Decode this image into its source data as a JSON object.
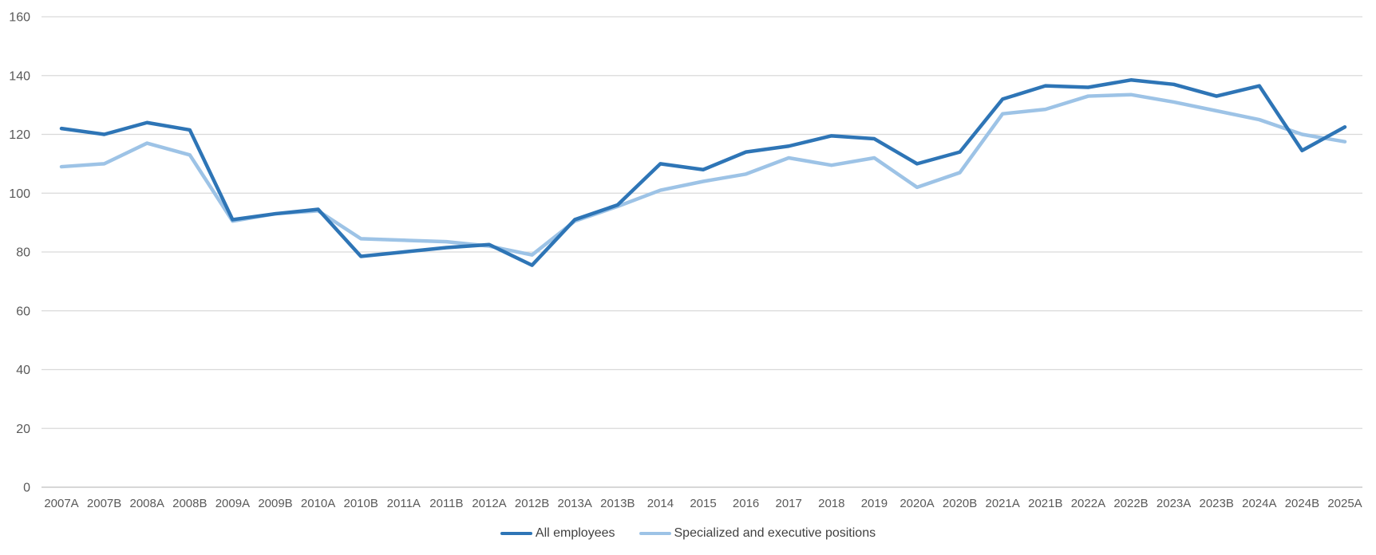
{
  "chart_data": {
    "type": "line",
    "title": "",
    "xlabel": "",
    "ylabel": "",
    "ylim": [
      0,
      160
    ],
    "yticks": [
      0,
      20,
      40,
      60,
      80,
      100,
      120,
      140,
      160
    ],
    "grid": "horizontal",
    "legend_position": "bottom-center",
    "categories": [
      "2007A",
      "2007B",
      "2008A",
      "2008B",
      "2009A",
      "2009B",
      "2010A",
      "2010B",
      "2011A",
      "2011B",
      "2012A",
      "2012B",
      "2013A",
      "2013B",
      "2014",
      "2015",
      "2016",
      "2017",
      "2018",
      "2019",
      "2020A",
      "2020B",
      "2021A",
      "2021B",
      "2022A",
      "2022B",
      "2023A",
      "2023B",
      "2024A",
      "2024B",
      "2025A"
    ],
    "series": [
      {
        "name": "All employees",
        "color": "#2E75B6",
        "values": [
          122,
          120,
          124,
          121.5,
          91,
          93,
          94.5,
          78.5,
          80,
          81.5,
          82.5,
          75.5,
          91,
          96,
          110,
          108,
          114,
          116,
          119.5,
          118.5,
          110,
          114,
          132,
          136.5,
          136,
          138.5,
          137,
          133,
          136.5,
          114.5,
          122.5
        ]
      },
      {
        "name": "Specialized and executive positions",
        "color": "#9DC3E6",
        "values": [
          109,
          110,
          117,
          113,
          90.5,
          93,
          94,
          84.5,
          84,
          83.5,
          82,
          79,
          90.5,
          95.5,
          101,
          104,
          106.5,
          112,
          109.5,
          112,
          102,
          107,
          127,
          128.5,
          133,
          133.5,
          131,
          128,
          125,
          120,
          117.5
        ]
      }
    ],
    "colors": {
      "gridline": "#D9D9D9",
      "zero_axis": "#BFBFBF",
      "tick_label": "#595959",
      "legend_text": "#404040",
      "background": "#FFFFFF"
    }
  }
}
